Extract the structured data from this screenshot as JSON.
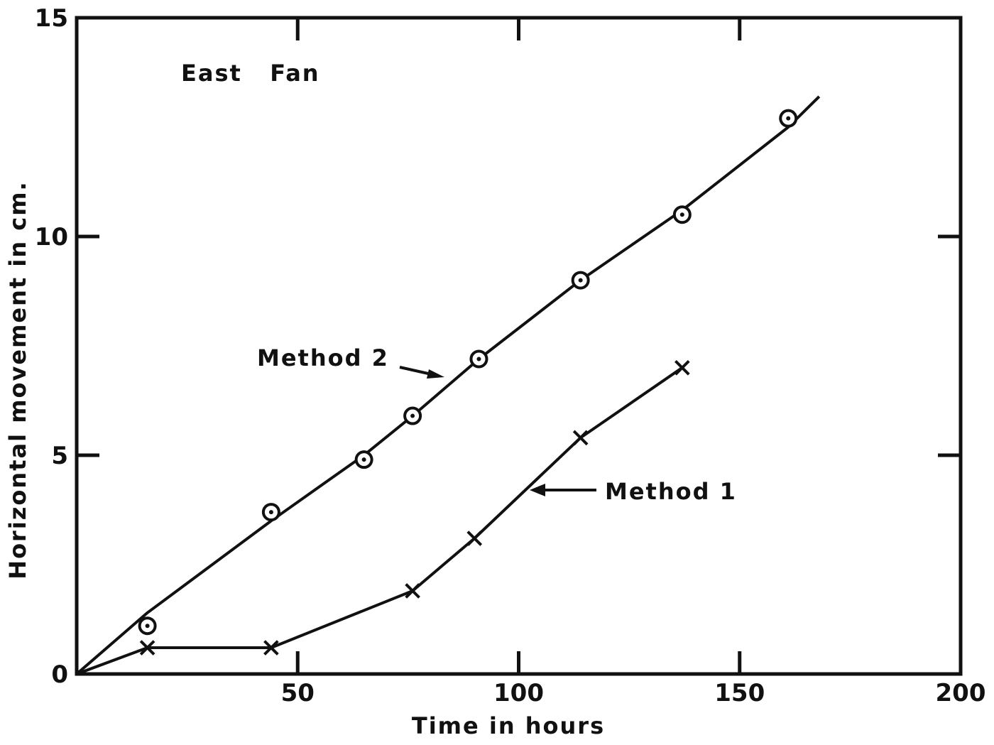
{
  "chart_data": {
    "type": "line",
    "title": "",
    "xlabel": "Time in hours",
    "ylabel": "Horizontal movement in cm.",
    "xlim": [
      0,
      200
    ],
    "ylim": [
      0,
      15
    ],
    "grid": false,
    "legend": "none",
    "x_ticks": [
      {
        "value": 50,
        "label": "50"
      },
      {
        "value": 100,
        "label": "100"
      },
      {
        "value": 150,
        "label": "150"
      },
      {
        "value": 200,
        "label": "200"
      }
    ],
    "y_ticks": [
      {
        "value": 0,
        "label": "0"
      },
      {
        "value": 5,
        "label": "5"
      },
      {
        "value": 10,
        "label": "10"
      },
      {
        "value": 15,
        "label": "15"
      }
    ],
    "annotations": [
      {
        "id": "panel-label",
        "text": "East   Fan"
      },
      {
        "id": "method2-label",
        "text": "Method 2"
      },
      {
        "id": "method1-label",
        "text": "Method 1"
      }
    ],
    "series": [
      {
        "name": "Method 2",
        "marker": "circle-dot",
        "line": [
          [
            0,
            0
          ],
          [
            16,
            1.4
          ],
          [
            44,
            3.5
          ],
          [
            58,
            4.5
          ],
          [
            65,
            5.0
          ],
          [
            76,
            5.9
          ],
          [
            91,
            7.2
          ],
          [
            114,
            9.0
          ],
          [
            137,
            10.6
          ],
          [
            161,
            12.5
          ],
          [
            168,
            13.2
          ]
        ],
        "points": [
          [
            16,
            1.1
          ],
          [
            44,
            3.7
          ],
          [
            65,
            4.9
          ],
          [
            76,
            5.9
          ],
          [
            91,
            7.2
          ],
          [
            114,
            9.0
          ],
          [
            137,
            10.5
          ],
          [
            161,
            12.7
          ]
        ]
      },
      {
        "name": "Method 1",
        "marker": "x",
        "line": [
          [
            0,
            0
          ],
          [
            16,
            0.6
          ],
          [
            44,
            0.6
          ],
          [
            76,
            1.9
          ],
          [
            90,
            3.1
          ],
          [
            114,
            5.4
          ],
          [
            137,
            7.0
          ]
        ],
        "points": [
          [
            16,
            0.6
          ],
          [
            44,
            0.6
          ],
          [
            76,
            1.9
          ],
          [
            90,
            3.1
          ],
          [
            114,
            5.4
          ],
          [
            137,
            7.0
          ]
        ]
      }
    ]
  }
}
